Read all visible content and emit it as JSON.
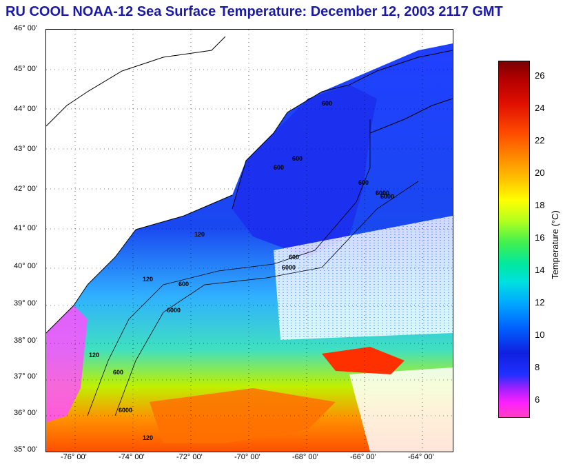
{
  "title": "RU COOL  NOAA-12  Sea Surface Temperature:  December 12, 2003 2117 GMT",
  "map": {
    "lat_labels": [
      "46° 00'",
      "45° 00'",
      "44° 00'",
      "43° 00'",
      "42° 00'",
      "41° 00'",
      "40° 00'",
      "39° 00'",
      "38° 00'",
      "37° 00'",
      "36° 00'",
      "35° 00'"
    ],
    "lon_labels": [
      "-76° 00'",
      "-74° 00'",
      "-72° 00'",
      "-70° 00'",
      "-68° 00'",
      "-66° 00'",
      "-64° 00'"
    ],
    "isobath_labels": [
      "600",
      "600",
      "600",
      "600",
      "6000",
      "6000",
      "600",
      "6000",
      "120",
      "120",
      "600",
      "6000",
      "120",
      "600",
      "6000",
      "120"
    ],
    "lat_range": [
      35,
      46
    ],
    "lon_range": [
      -77,
      -63
    ]
  },
  "colorbar": {
    "label": "Temperature (°C)",
    "ticks": [
      "26",
      "24",
      "22",
      "20",
      "18",
      "16",
      "14",
      "12",
      "10",
      "8",
      "6"
    ],
    "range": [
      5,
      27
    ]
  },
  "colors": {
    "title": "#1a1aa6",
    "land": "#ffffff",
    "cold": "#2030ff",
    "warm": "#ff6000"
  }
}
